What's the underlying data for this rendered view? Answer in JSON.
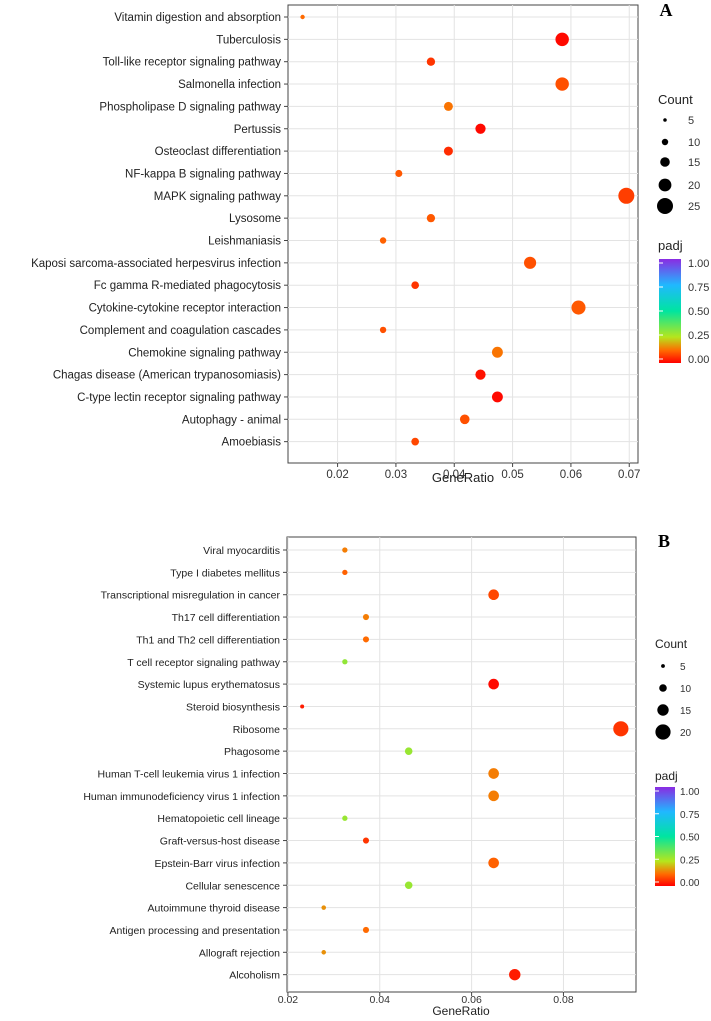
{
  "chart_data": [
    {
      "panel": "A",
      "type": "scatter",
      "xlabel": "GeneRatio",
      "xticks": [
        "0.02",
        "0.03",
        "0.04",
        "0.05",
        "0.06",
        "0.07"
      ],
      "xlim": [
        0.0115,
        0.0715
      ],
      "categories": [
        "Vitamin digestion and absorption",
        "Tuberculosis",
        "Toll-like receptor signaling pathway",
        "Salmonella infection",
        "Phospholipase D signaling pathway",
        "Pertussis",
        "Osteoclast differentiation",
        "NF-kappa B signaling pathway",
        "MAPK signaling pathway",
        "Lysosome",
        "Leishmaniasis",
        "Kaposi sarcoma-associated herpesvirus infection",
        "Fc gamma R-mediated phagocytosis",
        "Cytokine-cytokine receptor interaction",
        "Complement and coagulation cascades",
        "Chemokine signaling pathway",
        "Chagas disease (American trypanosomiasis)",
        "C-type lectin receptor signaling pathway",
        "Autophagy - animal",
        "Amoebiasis"
      ],
      "gene_ratio": [
        0.014,
        0.0585,
        0.036,
        0.0585,
        0.039,
        0.0445,
        0.039,
        0.0305,
        0.0695,
        0.036,
        0.0278,
        0.053,
        0.0333,
        0.0613,
        0.0278,
        0.0474,
        0.0445,
        0.0474,
        0.0418,
        0.0333
      ],
      "count": [
        1,
        21,
        13,
        21,
        14,
        16,
        14,
        11,
        25,
        13,
        10,
        19,
        12,
        22,
        10,
        17,
        16,
        17,
        15,
        12
      ],
      "padj": [
        0.12,
        0.01,
        0.06,
        0.09,
        0.13,
        0.01,
        0.05,
        0.1,
        0.07,
        0.1,
        0.11,
        0.09,
        0.06,
        0.1,
        0.09,
        0.13,
        0.02,
        0.01,
        0.09,
        0.08
      ],
      "size_legend": {
        "title": "Count",
        "values": [
          "5",
          "10",
          "15",
          "20",
          "25"
        ]
      },
      "color_legend": {
        "title": "padj",
        "ticks": [
          "1.00",
          "0.75",
          "0.50",
          "0.25",
          "0.00"
        ]
      }
    },
    {
      "panel": "B",
      "type": "scatter",
      "xlabel": "GeneRatio",
      "xticks": [
        "0.02",
        "0.04",
        "0.06",
        "0.08"
      ],
      "xlim": [
        0.0198,
        0.0958
      ],
      "categories": [
        "Viral myocarditis",
        "Type I diabetes mellitus",
        "Transcriptional misregulation in cancer",
        "Th17 cell differentiation",
        "Th1 and Th2 cell differentiation",
        "T cell receptor signaling pathway",
        "Systemic lupus erythematosus",
        "Steroid biosynthesis",
        "Ribosome",
        "Phagosome",
        "Human T-cell leukemia virus 1 infection",
        "Human immunodeficiency virus 1 infection",
        "Hematopoietic cell lineage",
        "Graft-versus-host disease",
        "Epstein-Barr virus infection",
        "Cellular senescence",
        "Autoimmune thyroid disease",
        "Antigen processing and presentation",
        "Allograft rejection",
        "Alcoholism"
      ],
      "gene_ratio": [
        0.0324,
        0.0324,
        0.0648,
        0.037,
        0.037,
        0.0324,
        0.0648,
        0.0231,
        0.0925,
        0.0463,
        0.0648,
        0.0648,
        0.0324,
        0.037,
        0.0648,
        0.0463,
        0.0278,
        0.037,
        0.0278,
        0.0694
      ],
      "count": [
        7,
        7,
        14,
        8,
        8,
        7,
        14,
        1,
        20,
        10,
        14,
        14,
        7,
        8,
        14,
        10,
        6,
        8,
        6,
        15
      ],
      "padj": [
        0.14,
        0.11,
        0.08,
        0.14,
        0.12,
        0.3,
        0.01,
        0.03,
        0.06,
        0.29,
        0.14,
        0.14,
        0.29,
        0.06,
        0.11,
        0.29,
        0.16,
        0.12,
        0.16,
        0.03
      ],
      "size_legend": {
        "title": "Count",
        "values": [
          "5",
          "10",
          "15",
          "20"
        ]
      },
      "color_legend": {
        "title": "padj",
        "ticks": [
          "1.00",
          "0.75",
          "0.50",
          "0.25",
          "0.00"
        ]
      }
    }
  ]
}
